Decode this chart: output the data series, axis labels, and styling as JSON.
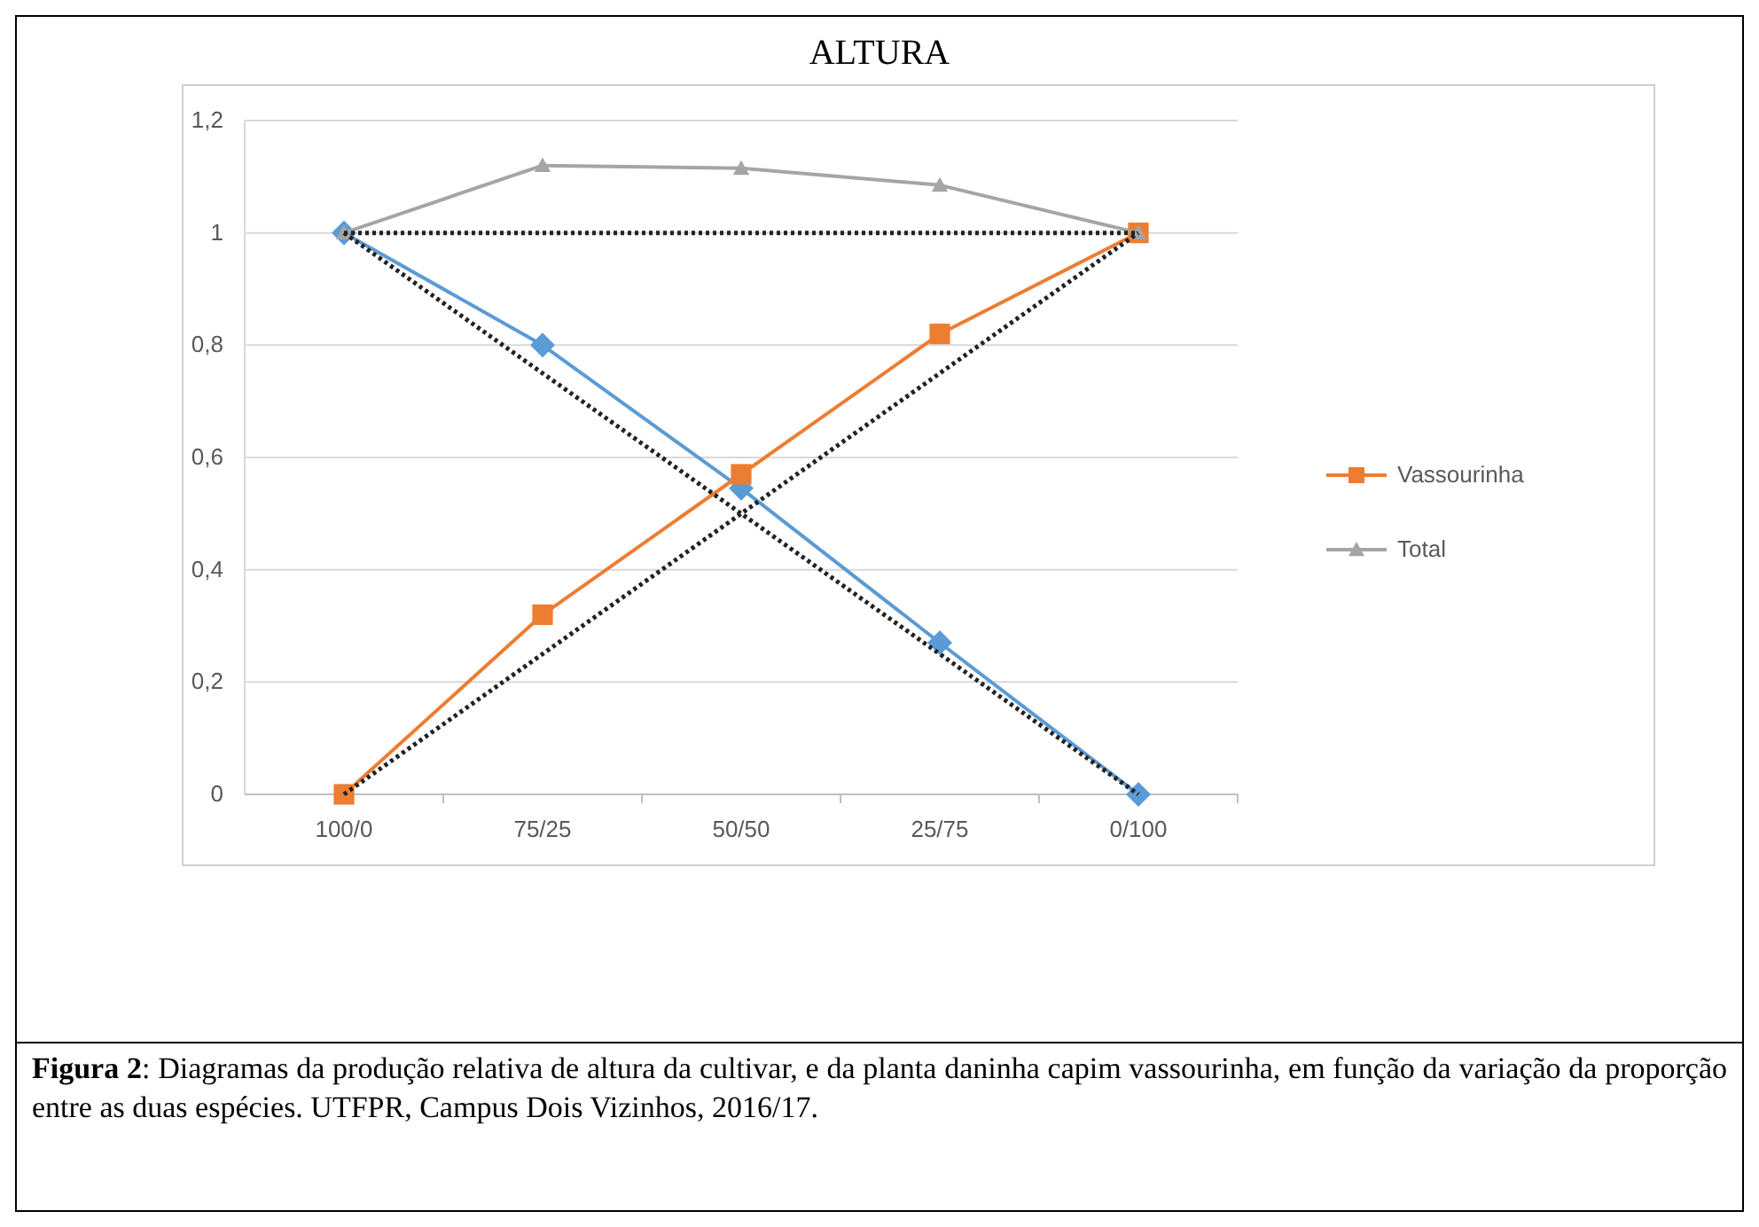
{
  "chart_data": {
    "type": "line",
    "title": "ALTURA",
    "categories": [
      "100/0",
      "75/25",
      "50/50",
      "25/75",
      "0/100"
    ],
    "series": [
      {
        "color": "#5b9bd5",
        "marker": "diamond",
        "values": [
          1,
          0.8,
          0.545,
          0.27,
          0
        ]
      },
      {
        "name": "Vassourinha",
        "color": "#ed7d31",
        "marker": "square",
        "values": [
          0,
          0.32,
          0.57,
          0.82,
          1.0
        ]
      },
      {
        "name": "Total",
        "color": "#a5a5a5",
        "marker": "triangle",
        "values": [
          1,
          1.12,
          1.115,
          1.085,
          1.0
        ]
      },
      {
        "color": "#222222",
        "marker": "none",
        "line_style": "dotted",
        "values": [
          1,
          null,
          null,
          null,
          1
        ]
      },
      {
        "color": "#222222",
        "marker": "none",
        "line_style": "dotted",
        "values": [
          1,
          null,
          null,
          null,
          0
        ]
      },
      {
        "color": "#222222",
        "marker": "none",
        "line_style": "dotted",
        "values": [
          0,
          null,
          null,
          null,
          1
        ]
      }
    ],
    "ylim": [
      0,
      1.2
    ],
    "yticks": [
      0,
      {
        "value": 0.2,
        "label": "0,2"
      },
      {
        "value": 0.4,
        "label": "0,4"
      },
      {
        "value": 0.6,
        "label": "0,6"
      },
      {
        "value": 0.8,
        "label": "0,8"
      },
      1,
      {
        "value": 1.2,
        "label": "1,2"
      }
    ],
    "grid": "y",
    "legend": "right",
    "annotations": [
      "Figura 2: Diagramas da produção relativa de altura da cultivar, e da planta daninha capim vassourinha, em função da variação da proporção entre as duas espécies. UTFPR, Campus Dois Vizinhos, 2016/17."
    ]
  }
}
